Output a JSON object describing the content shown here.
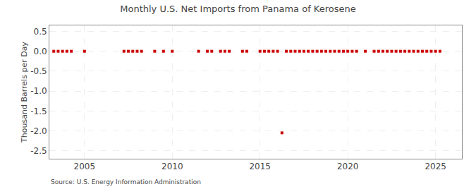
{
  "chart_data": {
    "type": "scatter",
    "title": "Monthly U.S. Net Imports from Panama of Kerosene",
    "ylabel": "Thousand Barrels per Day",
    "annotations": [
      "Source: U.S. Energy Information Administration"
    ],
    "color": "#cc0000",
    "marker": "square",
    "grid": true,
    "xlim": [
      2003.0,
      2026.5
    ],
    "ylim": [
      -2.7,
      0.65
    ],
    "xticks": [
      2005,
      2010,
      2015,
      2020,
      2025
    ],
    "yticks": [
      0.5,
      {
        "value": 0.0,
        "label": "0.0"
      },
      -0.5,
      {
        "value": -1.0,
        "label": "-1.0"
      },
      -1.5,
      {
        "value": -2.0,
        "label": "-2.0"
      },
      -2.5
    ],
    "x": [
      2003.25,
      2003.5,
      2003.75,
      2004.0,
      2004.25,
      2005.0,
      2007.25,
      2007.5,
      2007.75,
      2008.0,
      2008.25,
      2009.0,
      2009.5,
      2010.0,
      2011.5,
      2012.0,
      2012.25,
      2012.75,
      2013.0,
      2013.25,
      2014.0,
      2014.25,
      2015.0,
      2015.25,
      2015.5,
      2015.75,
      2016.0,
      2016.25,
      2016.5,
      2016.75,
      2017.0,
      2017.25,
      2017.5,
      2017.75,
      2018.0,
      2018.25,
      2018.5,
      2018.75,
      2019.0,
      2019.25,
      2019.5,
      2019.75,
      2020.0,
      2020.25,
      2020.5,
      2021.0,
      2021.5,
      2021.75,
      2022.0,
      2022.25,
      2022.5,
      2022.75,
      2023.0,
      2023.25,
      2023.5,
      2023.75,
      2024.0,
      2024.25,
      2024.5,
      2024.75,
      2025.0,
      2025.25
    ],
    "values": [
      0.0,
      0.0,
      0.0,
      0.0,
      0.0,
      0.0,
      0.0,
      0.0,
      0.0,
      0.0,
      0.0,
      0.0,
      0.0,
      0.0,
      0.0,
      0.0,
      0.0,
      0.0,
      0.0,
      0.0,
      0.0,
      0.0,
      0.0,
      0.0,
      0.0,
      0.0,
      0.0,
      -2.05,
      0.0,
      0.0,
      0.0,
      0.0,
      0.0,
      0.0,
      0.0,
      0.0,
      0.0,
      0.0,
      0.0,
      0.0,
      0.0,
      0.0,
      0.0,
      0.0,
      0.0,
      0.0,
      0.0,
      0.0,
      0.0,
      0.0,
      0.0,
      0.0,
      0.0,
      0.0,
      0.0,
      0.0,
      0.0,
      0.0,
      0.0,
      0.0,
      0.0,
      0.0
    ]
  }
}
